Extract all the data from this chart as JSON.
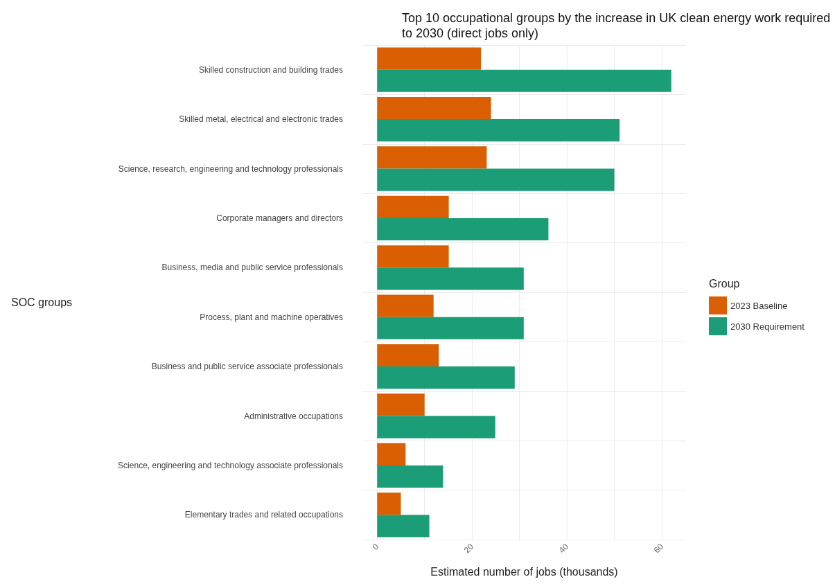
{
  "chart_data": {
    "type": "bar",
    "orientation": "horizontal",
    "title": "Top 10 occupational groups by the increase in UK clean energy work required to 2030 (direct jobs only)",
    "xlabel": "Estimated number of jobs (thousands)",
    "ylabel": "SOC groups",
    "legend_title": "Group",
    "legend": "right",
    "categories": [
      "Skilled construction and building trades",
      "Skilled metal, electrical and electronic trades",
      "Science, research, engineering and technology professionals",
      "Corporate managers and directors",
      "Business, media and public service professionals",
      "Process, plant and machine operatives",
      "Business and public service associate professionals",
      "Administrative occupations",
      "Science, engineering and technology associate professionals",
      "Elementary trades and related occupations"
    ],
    "series": [
      {
        "name": "2023 Baseline",
        "color": "#d95f02",
        "values": [
          21.9,
          24.0,
          23.1,
          15.1,
          15.1,
          11.9,
          13.0,
          10.0,
          6.0,
          5.0
        ]
      },
      {
        "name": "2030 Requirement",
        "color": "#1b9e77",
        "values": [
          62.0,
          51.1,
          50.0,
          36.1,
          30.9,
          30.9,
          29.0,
          24.9,
          13.9,
          11.0
        ]
      }
    ],
    "xlim": [
      -3.1,
      65.1
    ],
    "xticks": [
      0,
      {
        "value": 10,
        "label": null
      },
      20,
      {
        "value": 30,
        "label": null
      },
      40,
      {
        "value": 50,
        "label": null
      },
      60
    ],
    "grid": true
  }
}
